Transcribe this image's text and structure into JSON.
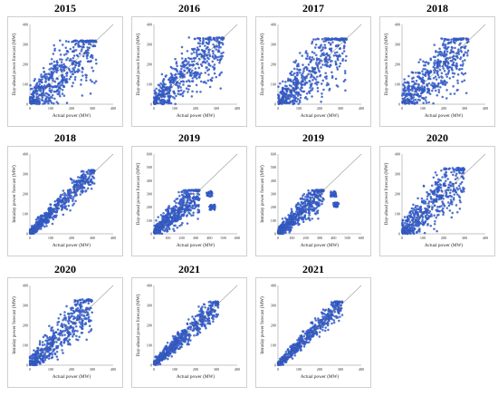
{
  "chart_data": [
    {
      "type": "scatter",
      "title": "2015",
      "xlabel": "Actual power (MW)",
      "ylabel": "Day-ahead power forecast (MW)",
      "xlim": [
        0,
        400
      ],
      "ylim": [
        0,
        400
      ],
      "xticks": [
        "0",
        "100",
        "200",
        "300",
        "400"
      ],
      "yticks": [
        "0",
        "100",
        "200",
        "300",
        "400"
      ],
      "color": "#3a64d6",
      "points_description_only": false,
      "reference_line": "y = x",
      "pattern": {
        "spread": 1.0,
        "cap": 320,
        "xmax": 320,
        "clusters": []
      }
    },
    {
      "type": "scatter",
      "title": "2016",
      "xlabel": "Actual power (MW)",
      "ylabel": "Day-ahead power forecast (MW)",
      "xlim": [
        0,
        400
      ],
      "ylim": [
        0,
        400
      ],
      "xticks": [
        "0",
        "100",
        "200",
        "300",
        "400"
      ],
      "yticks": [
        "0",
        "100",
        "200",
        "300",
        "400"
      ],
      "color": "#3a64d6",
      "reference_line": "y = x",
      "pattern": {
        "spread": 0.85,
        "cap": 335,
        "xmax": 335,
        "clusters": []
      }
    },
    {
      "type": "scatter",
      "title": "2017",
      "xlabel": "Actual power (MW)",
      "ylabel": "Day-ahead power forecast (MW)",
      "xlim": [
        0,
        400
      ],
      "ylim": [
        0,
        400
      ],
      "xticks": [
        "0",
        "100",
        "200",
        "300",
        "400"
      ],
      "yticks": [
        "0",
        "100",
        "200",
        "300",
        "400"
      ],
      "color": "#3a64d6",
      "reference_line": "y = x",
      "pattern": {
        "spread": 0.95,
        "cap": 330,
        "xmax": 330,
        "clusters": []
      }
    },
    {
      "type": "scatter",
      "title": "2018",
      "xlabel": "Actual power (MW)",
      "ylabel": "Day-ahead power forecast (MW)",
      "xlim": [
        0,
        400
      ],
      "ylim": [
        0,
        400
      ],
      "xticks": [
        "0",
        "100",
        "200",
        "300",
        "400"
      ],
      "yticks": [
        "0",
        "100",
        "200",
        "300",
        "400"
      ],
      "color": "#3a64d6",
      "reference_line": "y = x",
      "pattern": {
        "spread": 0.95,
        "cap": 330,
        "xmax": 320,
        "clusters": []
      }
    },
    {
      "type": "scatter",
      "title": "2018",
      "xlabel": "Actual power (MW)",
      "ylabel": "Intraday power forecast (MW)",
      "xlim": [
        0,
        400
      ],
      "ylim": [
        0,
        400
      ],
      "xticks": [
        "0",
        "100",
        "200",
        "300",
        "400"
      ],
      "yticks": [
        "0",
        "100",
        "200",
        "300",
        "400"
      ],
      "color": "#3a64d6",
      "reference_line": "y = x",
      "pattern": {
        "spread": 0.35,
        "cap": 320,
        "xmax": 310,
        "clusters": []
      }
    },
    {
      "type": "scatter",
      "title": "2019",
      "xlabel": "Actual power (MW)",
      "ylabel": "Day-ahead power forecast (MW)",
      "xlim": [
        0,
        600
      ],
      "ylim": [
        0,
        600
      ],
      "xticks": [
        "0",
        "100",
        "200",
        "300",
        "400",
        "500",
        "600"
      ],
      "yticks": [
        "0",
        "100",
        "200",
        "300",
        "400",
        "500",
        "600"
      ],
      "color": "#3a64d6",
      "reference_line": "y = x",
      "pattern": {
        "spread": 0.7,
        "cap": 330,
        "xmax": 330,
        "clusters": [
          [
            400,
            300,
            20
          ],
          [
            420,
            200,
            20
          ]
        ]
      }
    },
    {
      "type": "scatter",
      "title": "2019",
      "xlabel": "Actual power (MW)",
      "ylabel": "Intraday power forecast (MW)",
      "xlim": [
        0,
        600
      ],
      "ylim": [
        0,
        600
      ],
      "xticks": [
        "0",
        "100",
        "200",
        "300",
        "400",
        "500",
        "600"
      ],
      "yticks": [
        "0",
        "100",
        "200",
        "300",
        "400",
        "500",
        "600"
      ],
      "color": "#3a64d6",
      "reference_line": "y = x",
      "pattern": {
        "spread": 0.6,
        "cap": 330,
        "xmax": 330,
        "clusters": [
          [
            400,
            300,
            20
          ],
          [
            420,
            220,
            20
          ]
        ]
      }
    },
    {
      "type": "scatter",
      "title": "2020",
      "xlabel": "Actual power (MW)",
      "ylabel": "Day-ahead power forecast (MW)",
      "xlim": [
        0,
        400
      ],
      "ylim": [
        0,
        400
      ],
      "xticks": [
        "0",
        "100",
        "200",
        "300",
        "400"
      ],
      "yticks": [
        "0",
        "100",
        "200",
        "300",
        "400"
      ],
      "color": "#3a64d6",
      "reference_line": "y = x",
      "pattern": {
        "spread": 0.8,
        "cap": 330,
        "xmax": 300,
        "clusters": []
      }
    },
    {
      "type": "scatter",
      "title": "2020",
      "xlabel": "Actual power (MW)",
      "ylabel": "Intraday power forecast (MW)",
      "xlim": [
        0,
        400
      ],
      "ylim": [
        0,
        400
      ],
      "xticks": [
        "0",
        "100",
        "200",
        "300",
        "400"
      ],
      "yticks": [
        "0",
        "100",
        "200",
        "300",
        "400"
      ],
      "color": "#3a64d6",
      "reference_line": "y = x",
      "pattern": {
        "spread": 0.6,
        "cap": 330,
        "xmax": 300,
        "clusters": []
      }
    },
    {
      "type": "scatter",
      "title": "2021",
      "xlabel": "Actual power (MW)",
      "ylabel": "Day-ahead power forecast (MW)",
      "xlim": [
        0,
        400
      ],
      "ylim": [
        0,
        400
      ],
      "xticks": [
        "0",
        "100",
        "200",
        "300",
        "400"
      ],
      "yticks": [
        "0",
        "100",
        "200",
        "300",
        "400"
      ],
      "color": "#3a64d6",
      "reference_line": "y = x",
      "pattern": {
        "spread": 0.35,
        "cap": 320,
        "xmax": 310,
        "clusters": []
      }
    },
    {
      "type": "scatter",
      "title": "2021",
      "xlabel": "Actual power (MW)",
      "ylabel": "Intraday power forecast (MW)",
      "xlim": [
        0,
        400
      ],
      "ylim": [
        0,
        400
      ],
      "xticks": [
        "0",
        "100",
        "200",
        "300",
        "400"
      ],
      "yticks": [
        "0",
        "100",
        "200",
        "300",
        "400"
      ],
      "color": "#3a64d6",
      "reference_line": "y = x",
      "pattern": {
        "spread": 0.28,
        "cap": 320,
        "xmax": 310,
        "clusters": []
      }
    }
  ]
}
